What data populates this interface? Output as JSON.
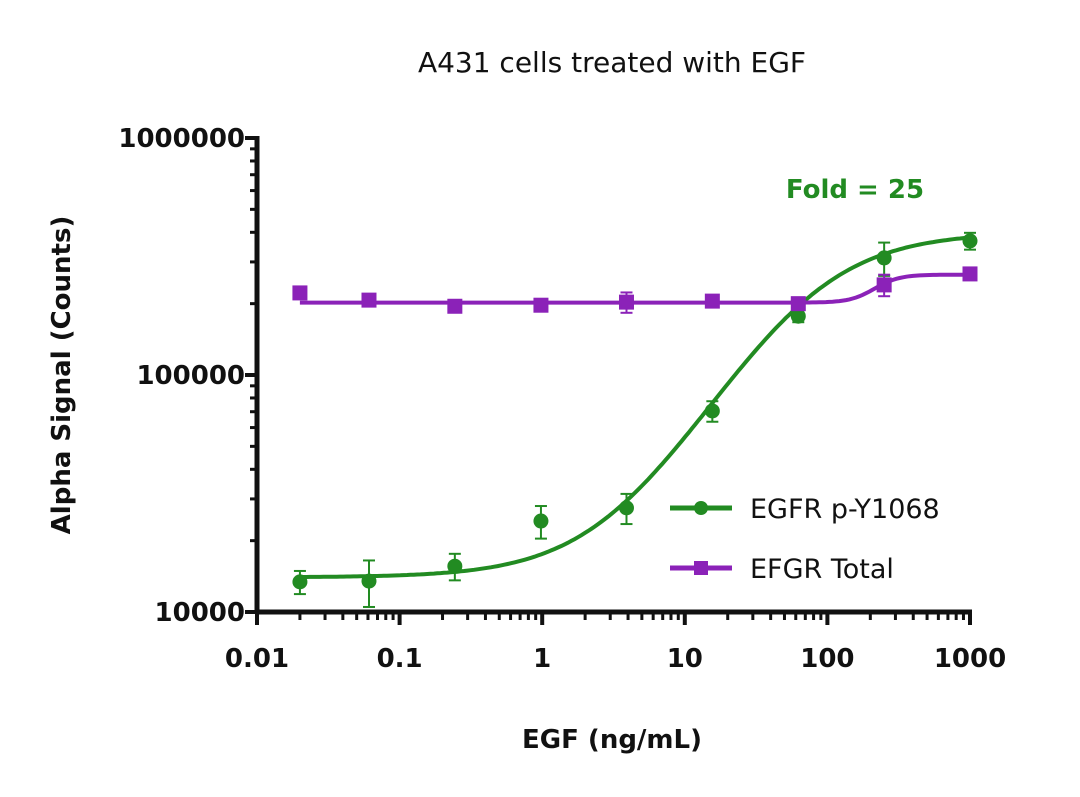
{
  "chart_data": {
    "type": "line",
    "title": "A431 cells treated with EGF",
    "xlabel": "EGF (ng/mL)",
    "ylabel": "Alpha Signal (Counts)",
    "xscale": "log",
    "yscale": "log",
    "xlim": [
      0.01,
      1000
    ],
    "ylim": [
      10000,
      1000000
    ],
    "xticks": [
      "0.01",
      "0.1",
      "1",
      "10",
      "100",
      "1000"
    ],
    "yticks": [
      "10000",
      "100000",
      "1000000"
    ],
    "grid": false,
    "legend_position": "bottom-right",
    "annotation": "Fold = 25",
    "series": [
      {
        "name": "EGFR p-Y1068",
        "color": "#228B22",
        "marker": "circle",
        "x": [
          0.02,
          0.061,
          0.244,
          0.98,
          3.9,
          15.6,
          62.5,
          250,
          1000
        ],
        "y": [
          13400,
          13500,
          15600,
          24200,
          27500,
          70500,
          177000,
          312000,
          368000
        ],
        "error": [
          1500,
          3000,
          2000,
          3800,
          4000,
          7000,
          10000,
          50000,
          30000
        ]
      },
      {
        "name": "EFGR Total",
        "color": "#8B22B8",
        "marker": "square",
        "x": [
          0.02,
          0.061,
          0.244,
          0.98,
          3.9,
          15.6,
          62.5,
          250,
          1000
        ],
        "y": [
          222000,
          207000,
          195000,
          197000,
          203000,
          205000,
          200000,
          240000,
          267000
        ],
        "error": [
          6000,
          5000,
          8000,
          5000,
          20000,
          5000,
          8000,
          25000,
          6000
        ]
      }
    ]
  }
}
